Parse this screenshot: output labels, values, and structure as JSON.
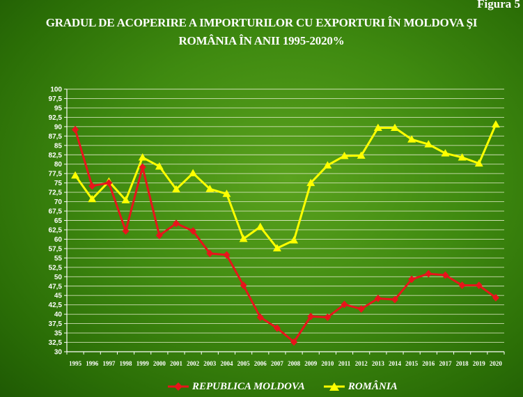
{
  "figure_label": "Figura 5",
  "title_line1": "GRADUL  DE ACOPERIRE  A IMPORTURILOR  CU EXPORTURI  ÎN MOLDOVA ŞI",
  "title_line2": "ROMÂNIA  ÎN ANII 1995-2020%",
  "chart_data": {
    "type": "line",
    "title": "GRADUL DE ACOPERIRE A IMPORTURILOR CU EXPORTURI ÎN MOLDOVA ŞI ROMÂNIA ÎN ANII 1995-2020%",
    "xlabel": "",
    "ylabel": "",
    "ylim": [
      30,
      100
    ],
    "ytick_step": 2.5,
    "yticks": [
      "30",
      "32,5",
      "35",
      "37,5",
      "40",
      "42,5",
      "45",
      "47,5",
      "50",
      "52,5",
      "55",
      "57,5",
      "60",
      "62,5",
      "65",
      "67,5",
      "70",
      "72,5",
      "75",
      "77,5",
      "80",
      "82,5",
      "85",
      "87,5",
      "90",
      "92,5",
      "95",
      "97,5",
      "100"
    ],
    "grid": true,
    "legend_position": "bottom",
    "x": [
      "1995",
      "1996",
      "1997",
      "1998",
      "1999",
      "2000",
      "2001",
      "2002",
      "2003",
      "2004",
      "2005",
      "2006",
      "2007",
      "2008",
      "2009",
      "2010",
      "2011",
      "2012",
      "2013",
      "2014",
      "2015",
      "2016",
      "2017",
      "2018",
      "2019",
      "2020"
    ],
    "series": [
      {
        "name": "REPUBLICA MOLDOVA",
        "color": "#e8141b",
        "marker": "diamond",
        "values": [
          89.2,
          74.2,
          75,
          62.2,
          79.2,
          61,
          64.2,
          62.2,
          56.2,
          55.8,
          47.7,
          39.2,
          36.3,
          32.6,
          39.4,
          39.2,
          42.6,
          41.4,
          44.2,
          43.9,
          49.3,
          50.8,
          50.4,
          47.7,
          47.7,
          44.4
        ]
      },
      {
        "name": "ROMÂNIA",
        "color": "#ffff00",
        "marker": "triangle",
        "values": [
          77,
          70.7,
          75.4,
          70.4,
          81.8,
          79.4,
          73.3,
          77.6,
          73.4,
          72.1,
          60.1,
          63.3,
          57.6,
          59.7,
          75,
          79.7,
          82.2,
          82.3,
          89.7,
          89.7,
          86.6,
          85.3,
          82.9,
          81.8,
          80.2,
          90.6
        ]
      }
    ]
  }
}
